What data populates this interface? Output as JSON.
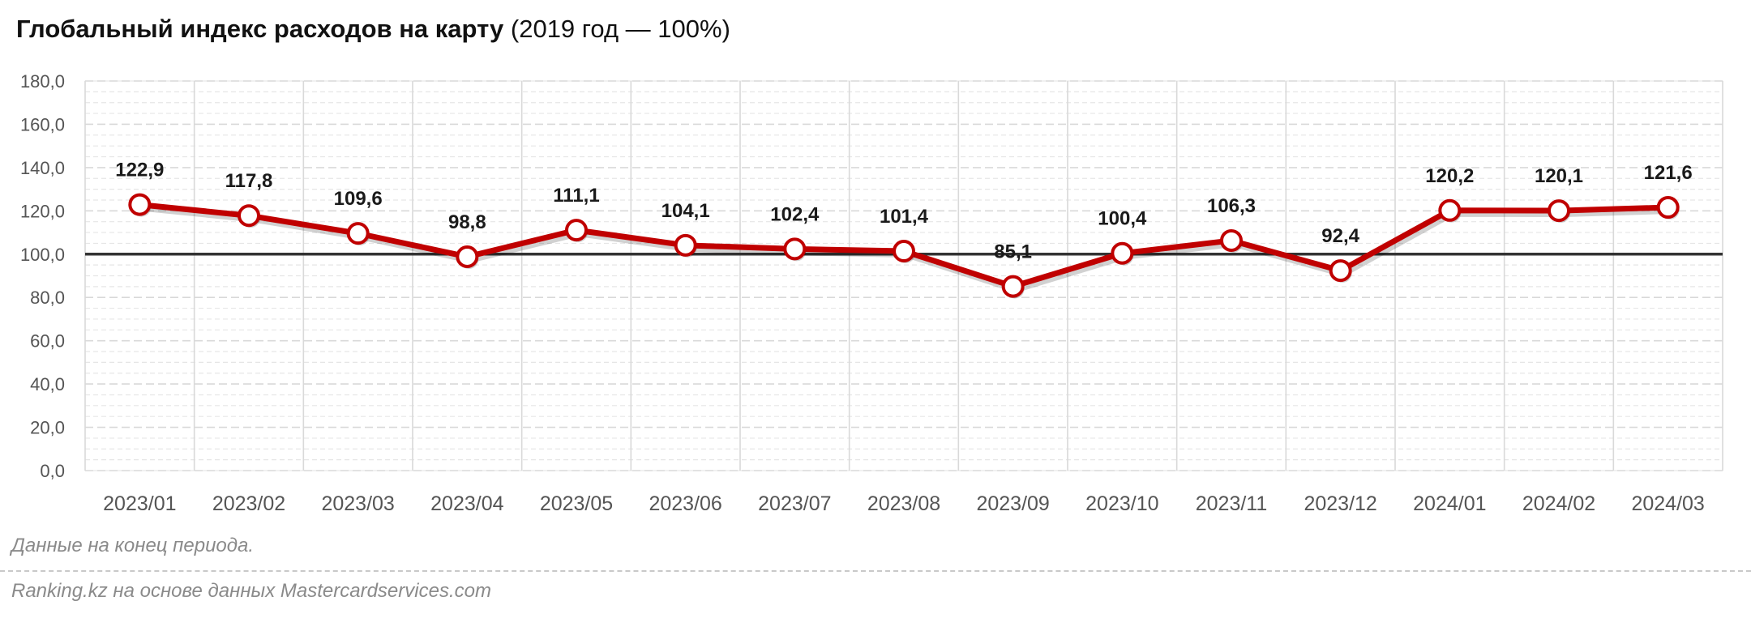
{
  "title_bold": "Глобальный индекс расходов на карту",
  "title_rest": "(2019 год — 100%)",
  "note": "Данные на конец периода.",
  "source": "Ranking.kz на основе данных Mastercardservices.com",
  "colors": {
    "line": "#c00000",
    "baseline": "#333333",
    "grid": "#d9d9d9"
  },
  "chart_data": {
    "type": "line",
    "categories": [
      "2023/01",
      "2023/02",
      "2023/03",
      "2023/04",
      "2023/05",
      "2023/06",
      "2023/07",
      "2023/08",
      "2023/09",
      "2023/10",
      "2023/11",
      "2023/12",
      "2024/01",
      "2024/02",
      "2024/03"
    ],
    "values": [
      122.9,
      117.8,
      109.6,
      98.8,
      111.1,
      104.1,
      102.4,
      101.4,
      85.1,
      100.4,
      106.3,
      92.4,
      120.2,
      120.1,
      121.6
    ],
    "value_labels": [
      "122,9",
      "117,8",
      "109,6",
      "98,8",
      "111,1",
      "104,1",
      "102,4",
      "101,4",
      "85,1",
      "100,4",
      "106,3",
      "92,4",
      "120,2",
      "120,1",
      "121,6"
    ],
    "yticks": [
      "0,0",
      "20,0",
      "40,0",
      "60,0",
      "80,0",
      "100,0",
      "120,0",
      "140,0",
      "160,0",
      "180,0"
    ],
    "ylim": [
      0,
      180
    ],
    "baseline": 100,
    "grid": true
  }
}
